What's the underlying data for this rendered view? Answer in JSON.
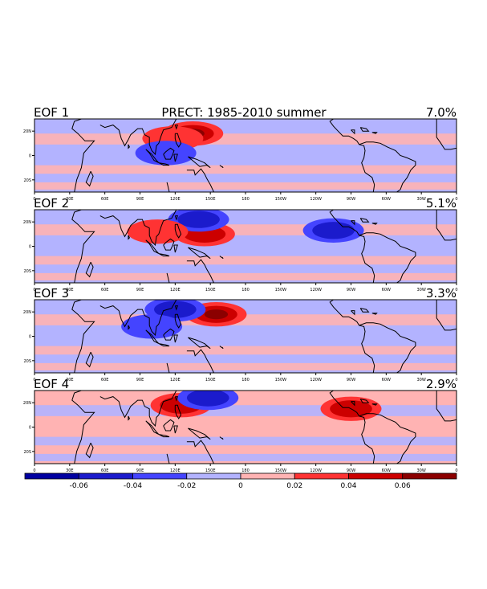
{
  "figure": {
    "title": "PRECT: 1985-2010 summer"
  },
  "chart_data": [
    {
      "type": "heatmap",
      "panel_label": "EOF 1",
      "variance": "7.0%",
      "x_ticks": [
        "0",
        "30E",
        "60E",
        "90E",
        "120E",
        "150E",
        "180",
        "150W",
        "120W",
        "90W",
        "60W",
        "30W",
        "0"
      ],
      "y_ticks": [
        "20N",
        "0",
        "20S"
      ],
      "background_sign": "negative",
      "features": [
        {
          "lon": 135,
          "lat": 18,
          "value": 0.06
        },
        {
          "lon": 118,
          "lat": 14,
          "value": 0.035
        },
        {
          "lon": 112,
          "lat": 2,
          "value": -0.03
        }
      ]
    },
    {
      "type": "heatmap",
      "panel_label": "EOF 2",
      "variance": "5.1%",
      "x_ticks": [
        "0",
        "30E",
        "60E",
        "90E",
        "120E",
        "150E",
        "180",
        "150W",
        "120W",
        "90W",
        "60W",
        "30W",
        "0"
      ],
      "y_ticks": [
        "20N",
        "0",
        "20S"
      ],
      "background_sign": "negative",
      "features": [
        {
          "lon": 145,
          "lat": 10,
          "value": 0.05
        },
        {
          "lon": 140,
          "lat": 22,
          "value": -0.04
        },
        {
          "lon": 105,
          "lat": 12,
          "value": 0.03
        },
        {
          "lon": 255,
          "lat": 13,
          "value": -0.04
        }
      ]
    },
    {
      "type": "heatmap",
      "panel_label": "EOF 3",
      "variance": "3.3%",
      "x_ticks": [
        "0",
        "30E",
        "60E",
        "90E",
        "120E",
        "150E",
        "180",
        "150W",
        "120W",
        "90W",
        "60W",
        "30W",
        "0"
      ],
      "y_ticks": [
        "20N",
        "0",
        "20S"
      ],
      "background_sign": "negative",
      "features": [
        {
          "lon": 155,
          "lat": 18,
          "value": 0.06
        },
        {
          "lon": 120,
          "lat": 22,
          "value": -0.05
        },
        {
          "lon": 100,
          "lat": 8,
          "value": -0.03
        }
      ]
    },
    {
      "type": "heatmap",
      "panel_label": "EOF 4",
      "variance": "2.9%",
      "x_ticks": [
        "0",
        "30E",
        "60E",
        "90E",
        "120E",
        "150E",
        "180",
        "150W",
        "120W",
        "90W",
        "60W",
        "30W",
        "0"
      ],
      "y_ticks": [
        "20N",
        "0",
        "20S"
      ],
      "background_sign": "positive",
      "features": [
        {
          "lon": 125,
          "lat": 18,
          "value": 0.04
        },
        {
          "lon": 148,
          "lat": 24,
          "value": -0.05
        },
        {
          "lon": 270,
          "lat": 15,
          "value": 0.05
        }
      ]
    }
  ],
  "colorbar": {
    "levels": [
      -0.08,
      -0.06,
      -0.04,
      -0.02,
      0,
      0.02,
      0.04,
      0.06,
      0.08
    ],
    "colors": [
      "#0000a0",
      "#1b1bcc",
      "#4444ff",
      "#b3b3ff",
      "#ffb3b3",
      "#ff3333",
      "#cc0000",
      "#8b0000"
    ],
    "tick_labels": [
      "-0.06",
      "-0.04",
      "-0.02",
      "0",
      "0.02",
      "0.04",
      "0.06"
    ]
  },
  "axes": {
    "lon_range": [
      0,
      360
    ],
    "lat_range": [
      -30,
      30
    ]
  }
}
